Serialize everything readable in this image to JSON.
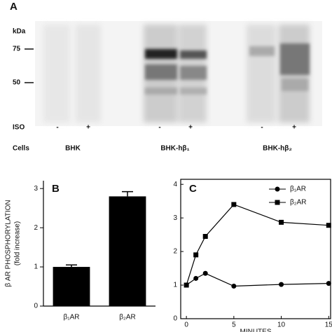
{
  "panel_a": {
    "label": "A",
    "kda": "kDa",
    "markers": [
      75,
      50
    ],
    "iso_label": "ISO",
    "iso": [
      "-",
      "+",
      "-",
      "+",
      "-",
      "+"
    ],
    "cells_label": "Cells",
    "cells": [
      "BHK",
      "BHK-hβ₁",
      "BHK-hβ₂"
    ]
  },
  "chart_data": [
    {
      "type": "bar",
      "label": "B",
      "y_label": [
        "β AR PHOSPHORYLATION",
        "(fold increase)"
      ],
      "categories": [
        "β₁AR",
        "β₂AR"
      ],
      "values": [
        1.0,
        2.8
      ],
      "errors": [
        0.05,
        0.12
      ],
      "color": "#000000",
      "ylim": [
        0,
        3.2
      ],
      "yticks": [
        0,
        1,
        2,
        3
      ]
    },
    {
      "type": "line",
      "label": "C",
      "x_label": "MINUTES",
      "x": [
        0,
        1,
        2,
        5,
        10,
        15
      ],
      "xlim": [
        -0.6,
        15.2
      ],
      "xticks": [
        0,
        5,
        10,
        15
      ],
      "ylim": [
        0,
        4.15
      ],
      "yticks": [
        0,
        1,
        2,
        3,
        4
      ],
      "legend": "upper-right",
      "series": [
        {
          "name": "β₁AR",
          "color": "#000000",
          "marker": "circle",
          "values": [
            1.0,
            1.2,
            1.35,
            0.97,
            1.02,
            1.05
          ]
        },
        {
          "name": "β₂AR",
          "color": "#000000",
          "marker": "square",
          "values": [
            1.0,
            1.9,
            2.45,
            3.4,
            2.87,
            2.78
          ]
        }
      ]
    }
  ]
}
